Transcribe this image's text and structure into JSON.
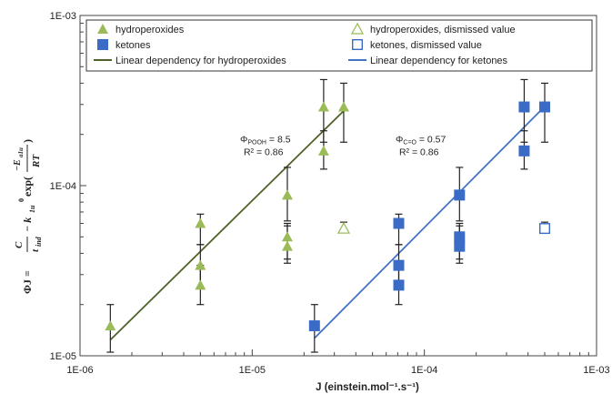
{
  "chart_data": {
    "type": "scatter",
    "xlabel": "J (einstein.mol⁻¹.s⁻¹)",
    "ylabel": {
      "lhs": "ΦJ = ",
      "frac1_num": "C",
      "frac1_den": "t",
      "frac1_den_sub": "ind",
      "minus": "− k",
      "k_sub": "1u",
      "k_sup": "0",
      "exp": "exp(",
      "frac2_num_E": "−E",
      "frac2_num_sub": "a1u",
      "frac2_den": "RT",
      "close": ")"
    },
    "x_scale": "log",
    "y_scale": "log",
    "xlim": [
      1e-06,
      0.001
    ],
    "ylim": [
      1e-05,
      0.001
    ],
    "x_tick_labels": [
      "1E-06",
      "1E-05",
      "1E-04",
      "1E-03"
    ],
    "y_tick_labels": [
      "1E-05",
      "1E-04",
      "1E-03"
    ],
    "colors": {
      "hydroperoxides": "#9bbb59",
      "ketones": "#3a6cc7",
      "hydro_line": "#4f6228",
      "ketone_line": "#4472c4",
      "error_bar": "#222222"
    },
    "series": [
      {
        "name": "hydroperoxides",
        "marker": "triangle-filled",
        "points": [
          {
            "x": 1.5e-06,
            "y": 1.5e-05,
            "err": [
              1.05e-05,
              2e-05
            ]
          },
          {
            "x": 5e-06,
            "y": 6e-05,
            "err": [
              4.5e-05,
              6.8e-05
            ]
          },
          {
            "x": 5e-06,
            "y": 3.4e-05,
            "err": [
              2.5e-05,
              4.5e-05
            ]
          },
          {
            "x": 5e-06,
            "y": 2.6e-05,
            "err": [
              2e-05,
              3.4e-05
            ]
          },
          {
            "x": 1.6e-05,
            "y": 8.8e-05,
            "err": [
              6.2e-05,
              0.000128
            ]
          },
          {
            "x": 1.6e-05,
            "y": 5e-05,
            "err": [
              3.7e-05,
              6e-05
            ]
          },
          {
            "x": 1.6e-05,
            "y": 4.4e-05,
            "err": [
              3.5e-05,
              5.8e-05
            ]
          },
          {
            "x": 2.6e-05,
            "y": 0.00029,
            "err": [
              0.00018,
              0.00042
            ]
          },
          {
            "x": 2.6e-05,
            "y": 0.00016,
            "err": [
              0.000125,
              0.00021
            ]
          },
          {
            "x": 3.4e-05,
            "y": 0.00029,
            "err": [
              0.00018,
              0.0004
            ]
          }
        ]
      },
      {
        "name": "hydroperoxides, dismissed value",
        "marker": "triangle-open",
        "points": [
          {
            "x": 3.4e-05,
            "y": 5.6e-05,
            "err": [
              5.4e-05,
              6.1e-05
            ]
          }
        ]
      },
      {
        "name": "ketones",
        "marker": "square-filled",
        "points": [
          {
            "x": 2.3e-05,
            "y": 1.5e-05,
            "err": [
              1.05e-05,
              2e-05
            ]
          },
          {
            "x": 7.1e-05,
            "y": 6e-05,
            "err": [
              4.5e-05,
              6.8e-05
            ]
          },
          {
            "x": 7.1e-05,
            "y": 3.4e-05,
            "err": [
              2.5e-05,
              4.5e-05
            ]
          },
          {
            "x": 7.1e-05,
            "y": 2.6e-05,
            "err": [
              2e-05,
              3.4e-05
            ]
          },
          {
            "x": 0.00016,
            "y": 8.8e-05,
            "err": [
              6.2e-05,
              0.000128
            ]
          },
          {
            "x": 0.00016,
            "y": 5e-05,
            "err": [
              3.7e-05,
              6e-05
            ]
          },
          {
            "x": 0.00016,
            "y": 4.4e-05,
            "err": [
              3.5e-05,
              5.8e-05
            ]
          },
          {
            "x": 0.00038,
            "y": 0.00029,
            "err": [
              0.00018,
              0.00042
            ]
          },
          {
            "x": 0.00038,
            "y": 0.00016,
            "err": [
              0.000125,
              0.00021
            ]
          },
          {
            "x": 0.0005,
            "y": 0.00029,
            "err": [
              0.00018,
              0.0004
            ]
          }
        ]
      },
      {
        "name": "ketones, dismissed value",
        "marker": "square-open",
        "points": [
          {
            "x": 0.0005,
            "y": 5.6e-05,
            "err": [
              5.4e-05,
              6.1e-05
            ]
          }
        ]
      }
    ],
    "lines": [
      {
        "name": "Linear dependency for hydroperoxides",
        "from": [
          1.5e-06,
          1.24e-05
        ],
        "to": [
          3.4e-05,
          0.000275
        ]
      },
      {
        "name": "Linear dependency for ketones",
        "from": [
          2.3e-05,
          1.27e-05
        ],
        "to": [
          0.00048,
          0.00028
        ]
      }
    ],
    "legend": {
      "placement": "top",
      "items": [
        {
          "label": "hydroperoxides",
          "marker": "triangle-filled"
        },
        {
          "label": "hydroperoxides, dismissed value",
          "marker": "triangle-open"
        },
        {
          "label": "ketones",
          "marker": "square-filled"
        },
        {
          "label": "ketones, dismissed value",
          "marker": "square-open"
        },
        {
          "label": "Linear dependency for hydroperoxides",
          "marker": "line-hydro"
        },
        {
          "label": "Linear dependency for ketones",
          "marker": "line-ketone"
        }
      ]
    },
    "annotations": [
      {
        "id": "hydro",
        "phi_symbol": "Φ",
        "phi_sub": "POOH",
        "phi_value": " = 8.5",
        "r2": "R² = 0.86",
        "x": 8.5e-06,
        "y": 0.00018
      },
      {
        "id": "ketone",
        "phi_symbol": "Φ",
        "phi_sub": "C=O",
        "phi_value": " = 0.57",
        "r2": "R² = 0.86",
        "x": 6.8e-05,
        "y": 0.00018
      }
    ]
  }
}
